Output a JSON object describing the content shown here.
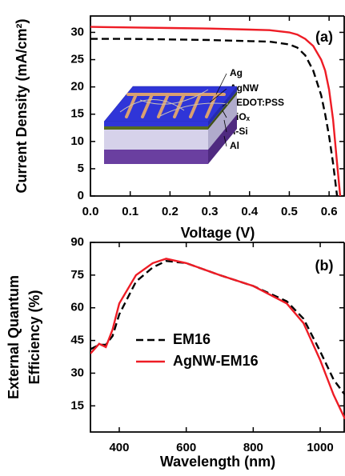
{
  "chart_data": [
    {
      "type": "line",
      "annotation": "(a)",
      "xlabel": "Voltage (V)",
      "ylabel": "Current Density (mA/cm²)",
      "inset_labels": [
        "Ag",
        "AgNW",
        "PEDOT:PSS",
        "SiOₓ",
        "n-Si",
        "Al"
      ],
      "x": [
        0,
        0.1,
        0.2,
        0.3,
        0.4,
        0.45,
        0.5,
        0.52,
        0.54,
        0.56,
        0.58,
        0.59,
        0.6,
        0.61,
        0.62,
        0.628
      ],
      "series": [
        {
          "color": "#000000",
          "dash": true,
          "values": [
            28.8,
            28.8,
            28.7,
            28.6,
            28.4,
            28.3,
            27.8,
            27.2,
            25.8,
            23.0,
            18.5,
            15,
            11,
            6,
            0,
            null
          ]
        },
        {
          "color": "#ee1c25",
          "dash": false,
          "values": [
            31.0,
            30.9,
            30.8,
            30.7,
            30.5,
            30.4,
            30.0,
            29.6,
            28.8,
            27.5,
            25,
            23,
            19.5,
            14,
            6,
            0
          ]
        }
      ],
      "xlim": [
        0,
        0.64
      ],
      "ylim": [
        0,
        33
      ],
      "xticks": [
        {
          "value": 0,
          "label": "0.0"
        },
        0.1,
        0.2,
        0.3,
        0.4,
        0.5,
        0.6
      ],
      "yticks": [
        0,
        5,
        10,
        15,
        20,
        25,
        30
      ]
    },
    {
      "type": "line",
      "annotation": "(b)",
      "xlabel": "Wavelength (nm)",
      "ylabel": [
        "External Quantum",
        "Efficiency (%)"
      ],
      "x": [
        314,
        340,
        360,
        380,
        400,
        450,
        500,
        540,
        600,
        700,
        800,
        900,
        950,
        1000,
        1040,
        1074
      ],
      "series": [
        {
          "name": "EM16",
          "color": "#000000",
          "dash": true,
          "values": [
            41,
            43,
            43,
            47,
            57,
            72,
            78.5,
            81.5,
            80.5,
            75,
            70,
            63,
            55,
            40,
            27,
            20
          ]
        },
        {
          "name": "AgNW-EM16",
          "color": "#ee1c25",
          "dash": false,
          "values": [
            39,
            43.5,
            42,
            50,
            62,
            75,
            80.5,
            82.5,
            80.5,
            75,
            70,
            62,
            53,
            36,
            20,
            9
          ]
        }
      ],
      "legend": "left",
      "xlim": [
        314,
        1074
      ],
      "ylim": [
        3,
        90
      ],
      "xticks": [
        400,
        600,
        800,
        1000
      ],
      "yticks": [
        15,
        30,
        45,
        60,
        75,
        90
      ]
    }
  ]
}
